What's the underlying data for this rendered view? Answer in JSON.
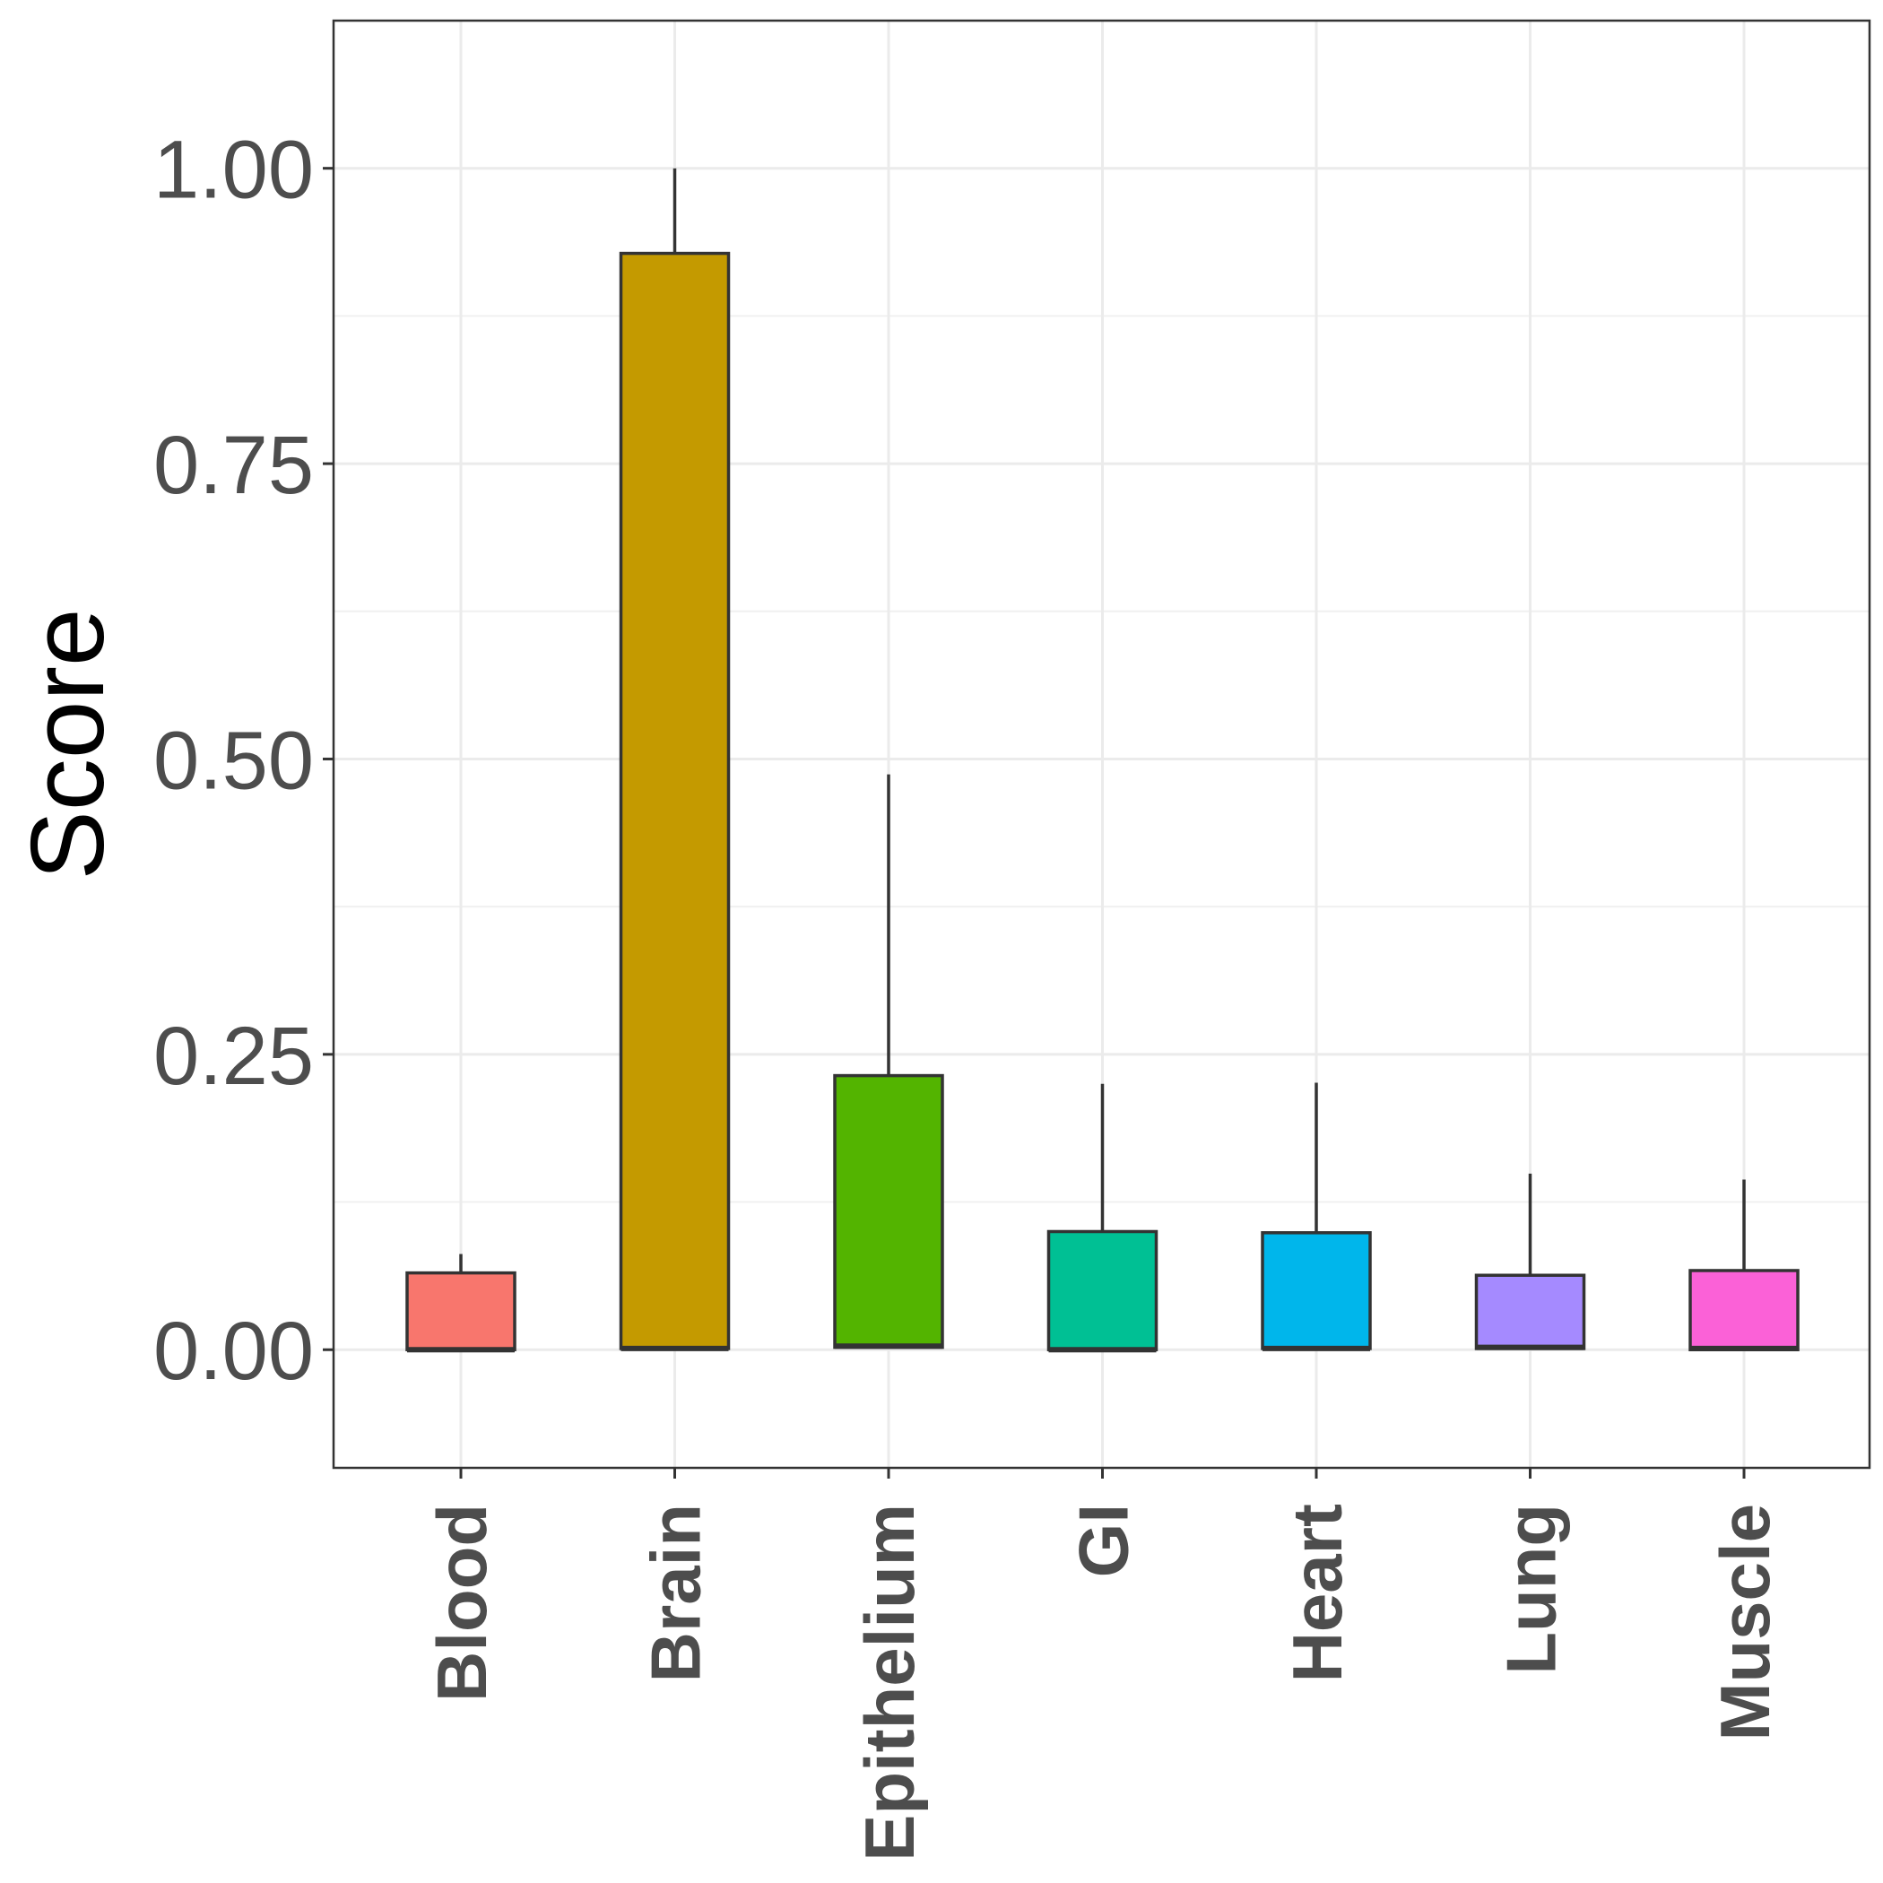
{
  "chart_data": {
    "type": "box",
    "title": "",
    "xlabel": "",
    "ylabel": "Score",
    "ylim": [
      -0.1,
      1.125
    ],
    "yticks": [
      "0.00",
      "0.25",
      "0.50",
      "0.75",
      "1.00"
    ],
    "ytick_values": [
      0,
      0.25,
      0.5,
      0.75,
      1.0
    ],
    "grid": true,
    "legend": "none",
    "categories": [
      "Blood",
      "Brain",
      "Epithelium",
      "GI",
      "Heart",
      "Lung",
      "Muscle"
    ],
    "colors": [
      "#F8766D",
      "#C49A00",
      "#53B400",
      "#00C094",
      "#00B6EB",
      "#A58AFF",
      "#FB61D7"
    ],
    "boxes": [
      {
        "category": "Blood",
        "lower": 0.0,
        "median": 0.0,
        "upper": 0.065,
        "whisker_high": 0.081
      },
      {
        "category": "Brain",
        "lower": 0.001,
        "median": 0.001,
        "upper": 0.928,
        "whisker_high": 1.0
      },
      {
        "category": "Epithelium",
        "lower": 0.002,
        "median": 0.003,
        "upper": 0.232,
        "whisker_high": 0.487
      },
      {
        "category": "GI",
        "lower": 0.0,
        "median": 0.0,
        "upper": 0.1,
        "whisker_high": 0.225
      },
      {
        "category": "Heart",
        "lower": 0.001,
        "median": 0.001,
        "upper": 0.099,
        "whisker_high": 0.226
      },
      {
        "category": "Lung",
        "lower": 0.001,
        "median": 0.002,
        "upper": 0.063,
        "whisker_high": 0.149
      },
      {
        "category": "Muscle",
        "lower": 0.0,
        "median": 0.001,
        "upper": 0.067,
        "whisker_high": 0.144
      }
    ]
  }
}
